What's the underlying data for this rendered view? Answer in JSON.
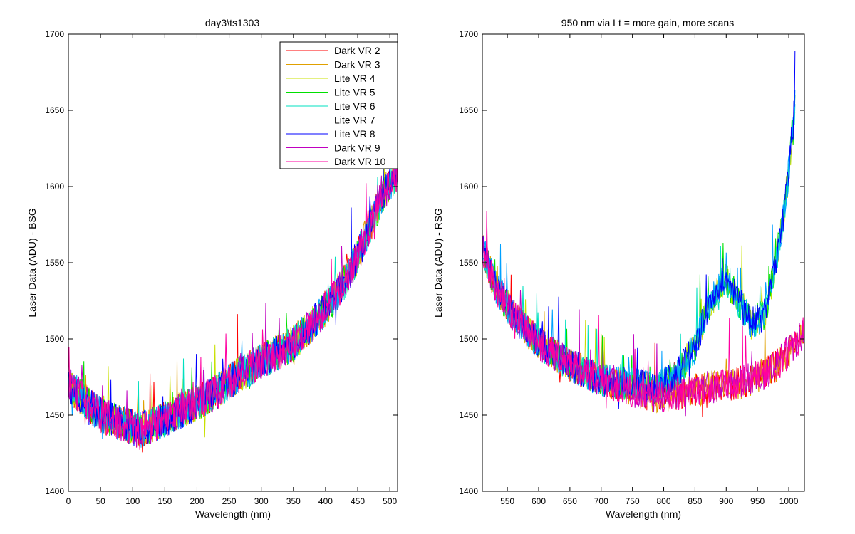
{
  "figure": {
    "background": "#ffffff",
    "series_colors": [
      "#ff0000",
      "#e0a000",
      "#c8e000",
      "#00e000",
      "#00e0c0",
      "#00a0ff",
      "#0000ff",
      "#c000c0",
      "#ff00a0"
    ]
  },
  "chart_data": [
    {
      "type": "line",
      "title": "day3\\ts1303",
      "xlabel": "Wavelength (nm)",
      "ylabel": "Laser Data (ADU) - BSG",
      "xlim": [
        0,
        512
      ],
      "ylim": [
        1400,
        1700
      ],
      "xticks": [
        0,
        50,
        100,
        150,
        200,
        250,
        300,
        350,
        400,
        450,
        500
      ],
      "yticks": [
        1400,
        1450,
        1500,
        1550,
        1600,
        1650,
        1700
      ],
      "grid": false,
      "legend_position": "top-right",
      "legend": [
        "Dark VR 2",
        "Dark VR 3",
        "Lite VR 4",
        "Lite VR 5",
        "Lite VR 6",
        "Lite VR 7",
        "Lite VR 8",
        "Dark VR 9",
        "Dark VR 10"
      ],
      "noise_amplitude": 12,
      "baseline": {
        "x": [
          0,
          20,
          50,
          80,
          110,
          140,
          170,
          200,
          230,
          260,
          290,
          320,
          350,
          380,
          410,
          440,
          470,
          490,
          512
        ],
        "y": [
          1470,
          1462,
          1450,
          1445,
          1440,
          1445,
          1452,
          1458,
          1465,
          1475,
          1483,
          1490,
          1497,
          1510,
          1525,
          1545,
          1575,
          1595,
          1610
        ]
      },
      "series": [
        {
          "name": "Dark VR 2"
        },
        {
          "name": "Dark VR 3"
        },
        {
          "name": "Lite VR 4"
        },
        {
          "name": "Lite VR 5"
        },
        {
          "name": "Lite VR 6"
        },
        {
          "name": "Lite VR 7"
        },
        {
          "name": "Lite VR 8"
        },
        {
          "name": "Dark VR 9"
        },
        {
          "name": "Dark VR 10"
        }
      ]
    },
    {
      "type": "line",
      "title": "950 nm via Lt = more gain, more scans",
      "xlabel": "Wavelength (nm)",
      "ylabel": "Laser Data (ADU) - RSG",
      "xlim": [
        510,
        1025
      ],
      "ylim": [
        1400,
        1700
      ],
      "xticks": [
        550,
        600,
        650,
        700,
        750,
        800,
        850,
        900,
        950,
        1000
      ],
      "yticks": [
        1400,
        1450,
        1500,
        1550,
        1600,
        1650,
        1700
      ],
      "grid": false,
      "noise_amplitude": 11,
      "baseline_dark": {
        "x": [
          510,
          530,
          560,
          600,
          650,
          700,
          750,
          790,
          830,
          870,
          910,
          950,
          980,
          1000,
          1025
        ],
        "y": [
          1560,
          1535,
          1515,
          1497,
          1483,
          1473,
          1466,
          1462,
          1465,
          1468,
          1470,
          1475,
          1482,
          1492,
          1505
        ]
      },
      "baseline_lite": {
        "x": [
          510,
          530,
          560,
          600,
          650,
          700,
          750,
          790,
          820,
          850,
          870,
          890,
          900,
          920,
          940,
          960,
          975,
          990,
          1000,
          1010
        ],
        "y": [
          1560,
          1535,
          1515,
          1497,
          1483,
          1473,
          1470,
          1468,
          1475,
          1495,
          1520,
          1535,
          1540,
          1525,
          1510,
          1515,
          1540,
          1575,
          1610,
          1655
        ]
      },
      "series": [
        {
          "name": "Dark VR 2",
          "profile": "dark"
        },
        {
          "name": "Dark VR 3",
          "profile": "dark"
        },
        {
          "name": "Lite VR 4",
          "profile": "lite"
        },
        {
          "name": "Lite VR 5",
          "profile": "lite"
        },
        {
          "name": "Lite VR 6",
          "profile": "lite"
        },
        {
          "name": "Lite VR 7",
          "profile": "lite"
        },
        {
          "name": "Lite VR 8",
          "profile": "lite"
        },
        {
          "name": "Dark VR 9",
          "profile": "dark"
        },
        {
          "name": "Dark VR 10",
          "profile": "dark"
        }
      ]
    }
  ]
}
